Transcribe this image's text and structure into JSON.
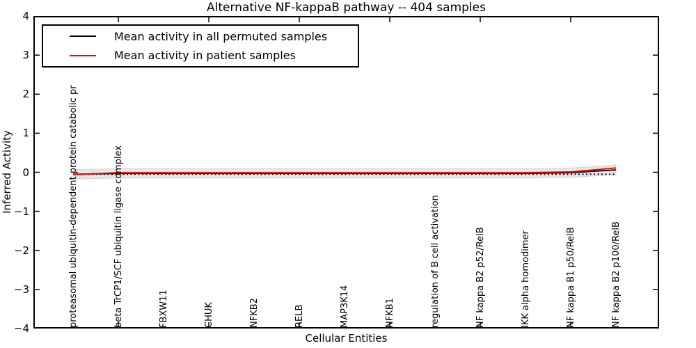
{
  "chart_data": {
    "type": "line",
    "title": "Alternative NF-kappaB pathway -- 404 samples",
    "xlabel": "Cellular Entities",
    "ylabel": "Inferred Activity",
    "ylim": [
      -4,
      4
    ],
    "yticks": [
      4,
      3,
      2,
      1,
      0,
      -1,
      -2,
      -3,
      -4
    ],
    "ytick_labels": [
      "4",
      "3",
      "2",
      "1",
      "0",
      "−1",
      "−2",
      "−3",
      "−4"
    ],
    "grid": false,
    "xtick_indices": [
      1,
      3,
      5,
      7,
      9,
      11
    ],
    "categories": [
      "proteasomal ubiquitin-dependent protein catabolic pr",
      "beta TrCP1/SCF ubiquitin ligase complex",
      "FBXW11",
      "CHUK",
      "NFKB2",
      "RELB",
      "MAP3K14",
      "NFKB1",
      "regulation of B cell activation",
      "NF kappa B2 p52/RelB",
      "IKK alpha homodimer",
      "NF kappa B1 p50/RelB",
      "NF kappa B2 p100/RelB"
    ],
    "series": [
      {
        "name": "",
        "style": "dotted",
        "color": "#000000",
        "values": [
          -0.05,
          -0.05,
          -0.05,
          -0.05,
          -0.05,
          -0.05,
          -0.05,
          -0.05,
          -0.05,
          -0.05,
          -0.05,
          -0.05,
          -0.05
        ]
      },
      {
        "name": "Mean activity in all permuted samples",
        "style": "solid",
        "color": "#000000",
        "values": [
          -0.05,
          -0.03,
          -0.03,
          -0.03,
          -0.03,
          -0.03,
          -0.03,
          -0.03,
          -0.03,
          -0.03,
          -0.03,
          -0.01,
          0.06
        ]
      },
      {
        "name": "Mean activity in patient samples",
        "style": "solid",
        "color": "#ff0000",
        "values": [
          -0.06,
          -0.01,
          -0.01,
          -0.01,
          -0.01,
          -0.01,
          -0.01,
          -0.01,
          -0.01,
          -0.01,
          -0.01,
          0.01,
          0.11
        ]
      }
    ],
    "band": {
      "color": "#e7e7e7",
      "edge_color": "#d4d4d4",
      "upper": [
        0.07,
        0.09,
        0.09,
        0.09,
        0.09,
        0.09,
        0.09,
        0.09,
        0.09,
        0.09,
        0.09,
        0.11,
        0.18
      ],
      "lower": [
        -0.17,
        -0.15,
        -0.15,
        -0.15,
        -0.15,
        -0.15,
        -0.15,
        -0.15,
        -0.15,
        -0.15,
        -0.15,
        -0.13,
        -0.06
      ]
    },
    "legend": {
      "position": "upper left",
      "items": [
        {
          "label": "Mean activity in all permuted samples",
          "color": "#000000"
        },
        {
          "label": "Mean activity in patient samples",
          "color": "#ff0000"
        }
      ]
    }
  }
}
